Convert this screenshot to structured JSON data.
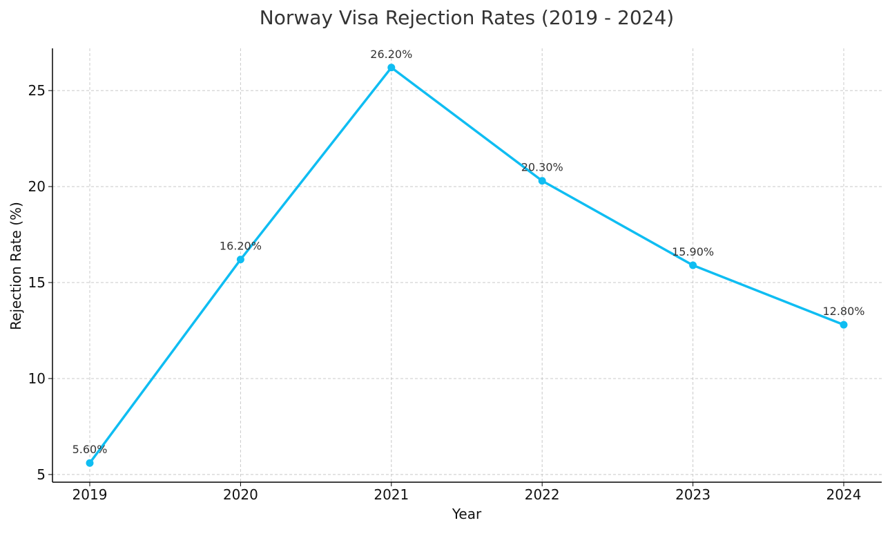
{
  "chart_data": {
    "type": "line",
    "title": "Norway Visa Rejection Rates (2019 - 2024)",
    "xlabel": "Year",
    "ylabel": "Rejection Rate (%)",
    "categories": [
      "2019",
      "2020",
      "2021",
      "2022",
      "2023",
      "2024"
    ],
    "series": [
      {
        "values": [
          5.6,
          16.2,
          26.2,
          20.3,
          15.9,
          12.8
        ],
        "data_labels": [
          "5.60%",
          "16.20%",
          "26.20%",
          "20.30%",
          "15.90%",
          "12.80%"
        ]
      }
    ],
    "yticks": [
      5,
      10,
      15,
      20,
      25
    ],
    "ylim": [
      4.6,
      27.2
    ],
    "grid": true,
    "colors": {
      "line": "#0FBDF2",
      "grid": "#c8c8c8",
      "axis": "#000000",
      "text": "#333333"
    }
  }
}
